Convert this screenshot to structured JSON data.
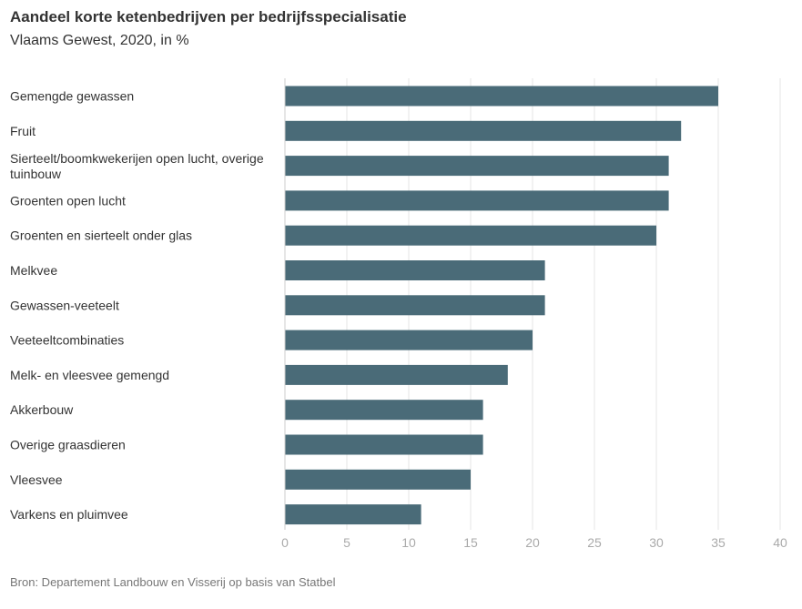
{
  "chart_data": {
    "type": "bar",
    "orientation": "horizontal",
    "title": "Aandeel korte ketenbedrijven per bedrijfsspecialisatie",
    "subtitle": "Vlaams Gewest, 2020, in %",
    "source": "Bron: Departement Landbouw en Visserij op basis van Statbel",
    "categories": [
      "Gemengde gewassen",
      "Fruit",
      "Sierteelt/boomkwekerijen open lucht, overige tuinbouw",
      "Groenten open lucht",
      "Groenten en sierteelt onder glas",
      "Melkvee",
      "Gewassen-veeteelt",
      "Veeteeltcombinaties",
      "Melk- en vleesvee gemengd",
      "Akkerbouw",
      "Overige graasdieren",
      "Vleesvee",
      "Varkens en pluimvee"
    ],
    "values": [
      35,
      32,
      31,
      31,
      30,
      21,
      21,
      20,
      18,
      16,
      16,
      15,
      11
    ],
    "xlim": [
      0,
      40
    ],
    "xticks": [
      "0",
      "5",
      "10",
      "15",
      "20",
      "25",
      "30",
      "35",
      "40"
    ],
    "grid": true,
    "bar_color": "#4a6b78"
  }
}
